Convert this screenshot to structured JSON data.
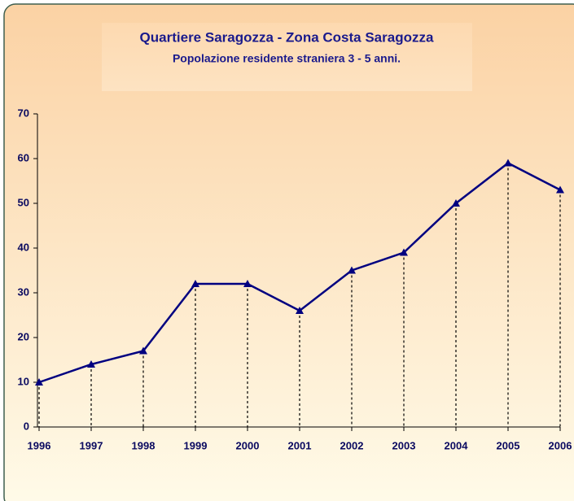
{
  "chart_data": {
    "type": "line",
    "title": "Quartiere Saragozza - Zona Costa Saragozza",
    "subtitle": "Popolazione residente straniera 3 - 5 anni.",
    "categories": [
      "1996",
      "1997",
      "1998",
      "1999",
      "2000",
      "2001",
      "2002",
      "2003",
      "2004",
      "2005",
      "2006"
    ],
    "values": [
      10,
      14,
      17,
      32,
      32,
      26,
      35,
      39,
      50,
      59,
      53
    ],
    "color": "#000080",
    "ylim": [
      0,
      70
    ],
    "yticks": [
      0,
      10,
      20,
      30,
      40,
      50,
      60,
      70
    ],
    "drop_lines": true
  }
}
